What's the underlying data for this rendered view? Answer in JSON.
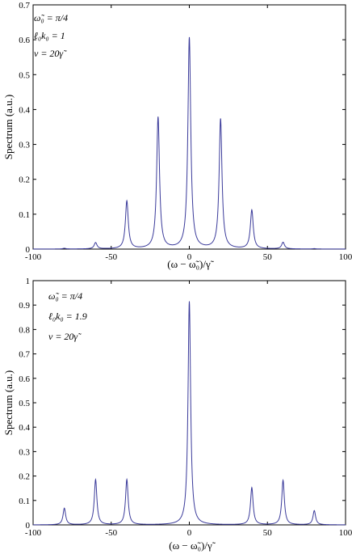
{
  "chart_data": [
    {
      "type": "line",
      "ylabel": "Spectrum (a.u.)",
      "xlabel": "(ω − ω̃₀)/γ̃",
      "xlim": [
        -100,
        100
      ],
      "ylim": [
        0,
        0.7
      ],
      "xticks": [
        -100,
        -50,
        0,
        50,
        100
      ],
      "yticks": [
        0,
        0.1,
        0.2,
        0.3,
        0.4,
        0.5,
        0.6,
        0.7
      ],
      "ytick_labels": [
        "0",
        "0.1",
        "0.2",
        "0.3",
        "0.4",
        "0.5",
        "0.6",
        "0.7"
      ],
      "annotations": [
        "ω̃₀ = π/4",
        "ℓ₀k₀ = 1",
        "ν = 20γ̃"
      ],
      "grid": false,
      "line_color": "#3a3a9a",
      "peaks": [
        {
          "x": -80,
          "y": 0.002
        },
        {
          "x": -60,
          "y": 0.018
        },
        {
          "x": -40,
          "y": 0.137
        },
        {
          "x": -20,
          "y": 0.377
        },
        {
          "x": 0,
          "y": 0.605
        },
        {
          "x": 20,
          "y": 0.372
        },
        {
          "x": 40,
          "y": 0.111
        },
        {
          "x": 60,
          "y": 0.019
        },
        {
          "x": 80,
          "y": 0.001
        }
      ]
    },
    {
      "type": "line",
      "ylabel": "Spectrum (a.u.)",
      "xlabel": "(ω − ω̃₀)/γ̃",
      "xlim": [
        -100,
        100
      ],
      "ylim": [
        0,
        1
      ],
      "xticks": [
        -100,
        -50,
        0,
        50,
        100
      ],
      "yticks": [
        0,
        0.1,
        0.2,
        0.3,
        0.4,
        0.5,
        0.6,
        0.7,
        0.8,
        0.9,
        1
      ],
      "ytick_labels": [
        "0",
        "0.1",
        "0.2",
        "0.3",
        "0.4",
        "0.5",
        "0.6",
        "0.7",
        "0.8",
        "0.9",
        "1"
      ],
      "annotations": [
        "ω̃₀ = π/4",
        "ℓ₀k₀ = 1.9",
        "ν = 20γ̃"
      ],
      "grid": false,
      "line_color": "#3a3a9a",
      "peaks": [
        {
          "x": -80,
          "y": 0.068
        },
        {
          "x": -60,
          "y": 0.185
        },
        {
          "x": -40,
          "y": 0.185
        },
        {
          "x": 0,
          "y": 0.915
        },
        {
          "x": 40,
          "y": 0.152
        },
        {
          "x": 60,
          "y": 0.182
        },
        {
          "x": 80,
          "y": 0.058
        }
      ]
    }
  ]
}
